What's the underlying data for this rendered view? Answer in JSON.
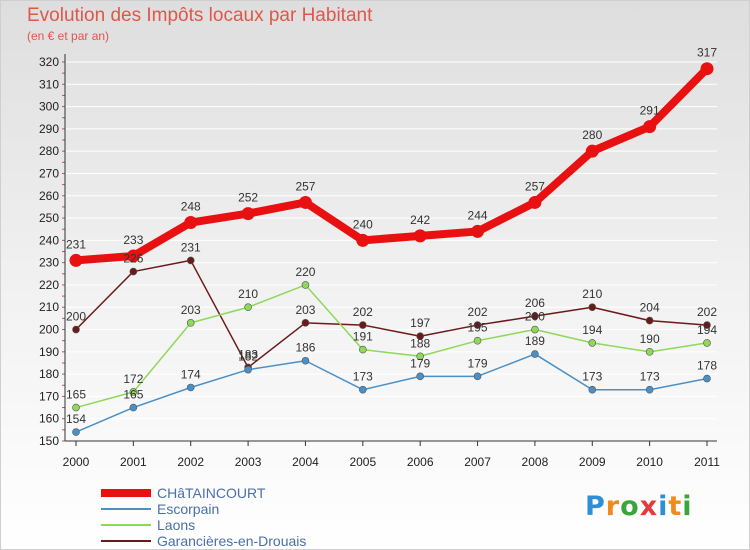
{
  "title": "Evolution des Impôts locaux par Habitant",
  "subtitle": "(en € et par an)",
  "logo": {
    "text": "Proxiti",
    "letters": [
      "P",
      "r",
      "o",
      "x",
      "i",
      "t",
      "i"
    ],
    "colors": [
      "#2e8fd8",
      "#f08a1c",
      "#3aa53a",
      "#e23b3b",
      "#2e8fd8",
      "#f08a1c",
      "#3aa53a"
    ]
  },
  "chart_data": {
    "type": "line",
    "title": "Evolution des Impôts locaux par Habitant",
    "ylabel": "(en € et par an)",
    "x": [
      "2000",
      "2001",
      "2002",
      "2003",
      "2004",
      "2005",
      "2006",
      "2007",
      "2008",
      "2009",
      "2010",
      "2011"
    ],
    "ylim": [
      150,
      320
    ],
    "yticks": [
      "150",
      "160",
      "170",
      "180",
      "190",
      "200",
      "210",
      "220",
      "230",
      "240",
      "250",
      "260",
      "270",
      "280",
      "290",
      "300",
      "310",
      "320"
    ],
    "series": [
      {
        "name": "CHâTAINCOURT",
        "color": "#e81010",
        "values": [
          231,
          233,
          248,
          252,
          257,
          240,
          242,
          244,
          257,
          280,
          291,
          317
        ],
        "labels": [
          "231",
          "233",
          "248",
          "252",
          "257",
          "240",
          "242",
          "244",
          "257",
          "280",
          "291",
          "317"
        ]
      },
      {
        "name": "Escorpain",
        "color": "#4a90c8",
        "values": [
          154,
          165,
          174,
          182,
          186,
          173,
          179,
          179,
          189,
          173,
          173,
          178
        ],
        "labels": [
          "154",
          "165",
          "174",
          "182",
          "186",
          "173",
          "179",
          "179",
          "189",
          "173",
          "173",
          "178"
        ]
      },
      {
        "name": "Laons",
        "color": "#8ed85a",
        "values": [
          165,
          172,
          203,
          210,
          220,
          191,
          188,
          195,
          200,
          194,
          190,
          194
        ],
        "labels": [
          "165",
          "172",
          "203",
          "210",
          "220",
          "191",
          "188",
          "195",
          "200",
          "194",
          "190",
          "194"
        ]
      },
      {
        "name": "Garancières-en-Drouais",
        "color": "#6b1a1a",
        "values": [
          200,
          226,
          231,
          183,
          203,
          202,
          197,
          202,
          206,
          210,
          204,
          202
        ],
        "labels": [
          "200",
          "226",
          "231",
          "183",
          "203",
          "202",
          "197",
          "202",
          "206",
          "210",
          "204",
          "202"
        ]
      }
    ]
  }
}
